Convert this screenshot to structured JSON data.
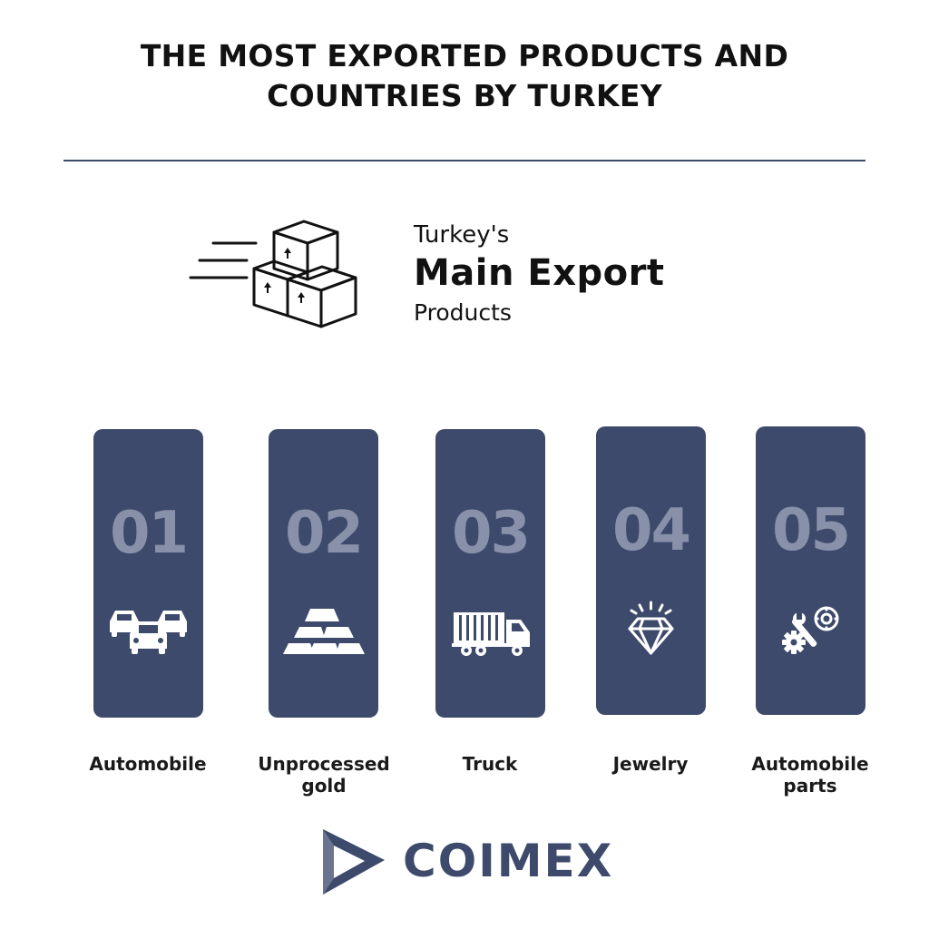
{
  "header": {
    "title_line1": "THE MOST EXPORTED PRODUCTS AND",
    "title_line2": "COUNTRIES BY TURKEY"
  },
  "hero": {
    "pre": "Turkey's",
    "main": "Main Export",
    "post": "Products",
    "icon": "boxes-icon"
  },
  "products": [
    {
      "number": "01",
      "label": "Automobile",
      "icon": "cars-icon"
    },
    {
      "number": "02",
      "label": "Unprocessed gold",
      "icon": "gold-bars-icon"
    },
    {
      "number": "03",
      "label": "Truck",
      "icon": "truck-icon"
    },
    {
      "number": "04",
      "label": "Jewelry",
      "icon": "diamond-icon"
    },
    {
      "number": "05",
      "label": "Automobile parts",
      "icon": "parts-icon"
    }
  ],
  "brand": {
    "name": "COIMEX"
  },
  "colors": {
    "card": "#3d4a6b",
    "number": "#8890aa",
    "brand": "#3d4a6b"
  }
}
